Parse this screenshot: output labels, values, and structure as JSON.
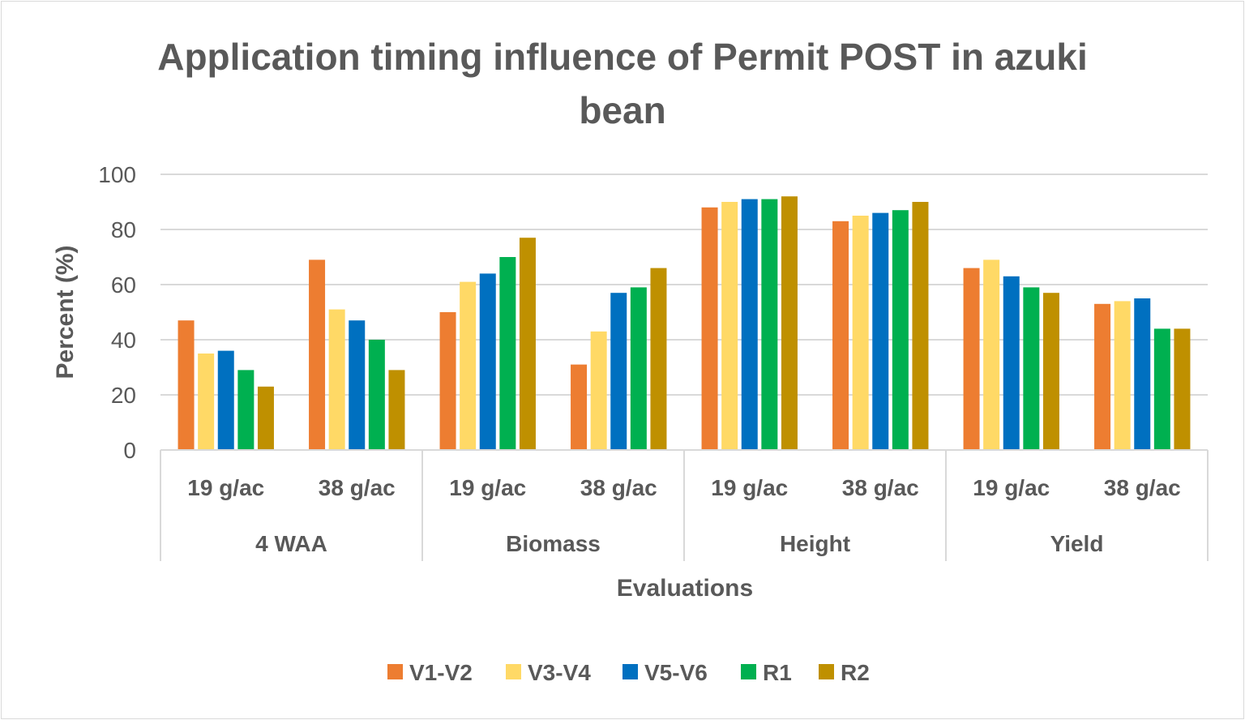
{
  "chart_data": {
    "type": "bar",
    "title": "Application timing influence of Permit POST in azuki bean",
    "xlabel": "Evaluations",
    "ylabel": "Percent (%)",
    "ylim": [
      0,
      100
    ],
    "yticks": [
      0,
      20,
      40,
      60,
      80,
      100
    ],
    "grid": true,
    "legend_position": "bottom",
    "groups": [
      "4 WAA",
      "Biomass",
      "Height",
      "Yield"
    ],
    "categories": [
      "19 g/ac",
      "38 g/ac",
      "19 g/ac",
      "38 g/ac",
      "19 g/ac",
      "38 g/ac",
      "19 g/ac",
      "38 g/ac"
    ],
    "series": [
      {
        "name": "V1-V2",
        "color": "#ED7D31",
        "values": [
          47,
          69,
          50,
          31,
          88,
          83,
          66,
          53
        ]
      },
      {
        "name": "V3-V4",
        "color": "#FFD966",
        "values": [
          35,
          51,
          61,
          43,
          90,
          85,
          69,
          54
        ]
      },
      {
        "name": "V5-V6",
        "color": "#0070C0",
        "values": [
          36,
          47,
          64,
          57,
          91,
          86,
          63,
          55
        ]
      },
      {
        "name": "R1",
        "color": "#00B050",
        "values": [
          29,
          40,
          70,
          59,
          91,
          87,
          59,
          44
        ]
      },
      {
        "name": "R2",
        "color": "#BF9000",
        "values": [
          23,
          29,
          77,
          66,
          92,
          90,
          57,
          44
        ]
      }
    ]
  }
}
